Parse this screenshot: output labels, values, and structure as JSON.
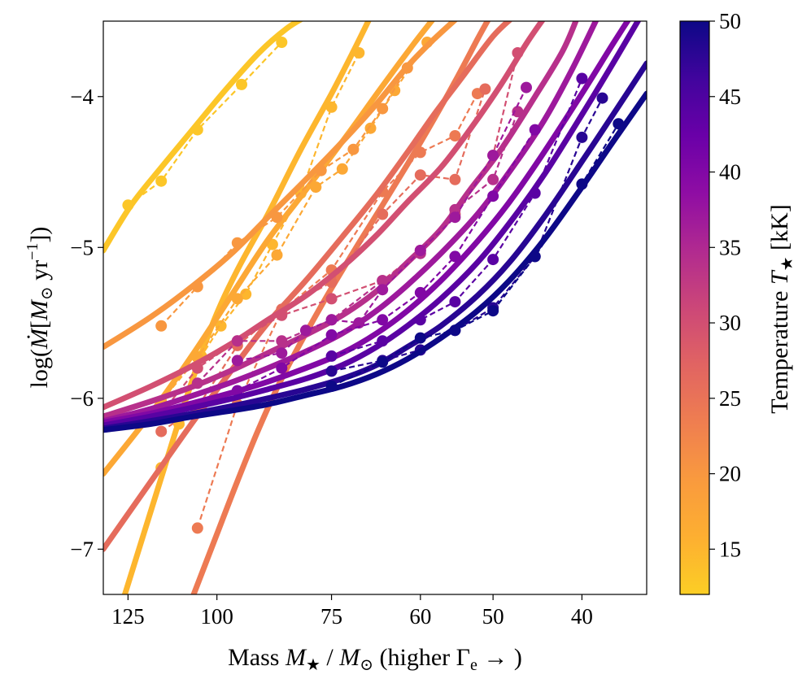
{
  "chart_data": {
    "type": "line",
    "x_scale": "log",
    "x_reversed": true,
    "xlabel_parts": {
      "text": "Mass ",
      "symbol": "M",
      "sub": "★",
      "slash": " / ",
      "symbol2": "M",
      "sub2": "⊙",
      "paren": " (higher Γ",
      "paren_sub": "e",
      "paren_end": " → )"
    },
    "xlabel": "Mass M★ / M⊙ (higher Γe → )",
    "ylabel_parts": {
      "pre": "log(",
      "symbol": "Ṁ",
      "open": "[",
      "unit": "M",
      "unit_sub": "⊙",
      "rest": " yr",
      "sup": "−1",
      "close": "])"
    },
    "ylabel": "log(Ṁ[M⊙ yr−1])",
    "xlim": [
      133,
      34
    ],
    "ylim": [
      -7.3,
      -3.5
    ],
    "xticks": [
      {
        "value": 125,
        "label": "125"
      },
      {
        "value": 100,
        "label": "100"
      },
      {
        "value": 75,
        "label": "75"
      },
      {
        "value": 60,
        "label": "60"
      },
      {
        "value": 50,
        "label": "50"
      },
      {
        "value": 40,
        "label": "40"
      }
    ],
    "yticks": [
      {
        "value": -4,
        "label": "−4"
      },
      {
        "value": -5,
        "label": "−5"
      },
      {
        "value": -6,
        "label": "−6"
      },
      {
        "value": -7,
        "label": "−7"
      }
    ],
    "colorbar": {
      "label": "Temperature T★ [kK]",
      "label_text": "Temperature ",
      "label_symbol": "T",
      "label_sub": "★",
      "label_units": " [kK]",
      "range": [
        12,
        50
      ],
      "ticks": [
        {
          "value": 15,
          "label": "15"
        },
        {
          "value": 20,
          "label": "20"
        },
        {
          "value": 25,
          "label": "25"
        },
        {
          "value": 30,
          "label": "30"
        },
        {
          "value": 35,
          "label": "35"
        },
        {
          "value": 40,
          "label": "40"
        },
        {
          "value": 45,
          "label": "45"
        },
        {
          "value": 50,
          "label": "50"
        }
      ],
      "stops": [
        {
          "t": 0.0,
          "color": "#fcce25"
        },
        {
          "t": 0.1,
          "color": "#fdaf31"
        },
        {
          "t": 0.2,
          "color": "#f99a3e"
        },
        {
          "t": 0.3,
          "color": "#ef7e50"
        },
        {
          "t": 0.4,
          "color": "#e16462"
        },
        {
          "t": 0.5,
          "color": "#cc4778"
        },
        {
          "t": 0.6,
          "color": "#b12a90"
        },
        {
          "t": 0.7,
          "color": "#8f0da4"
        },
        {
          "t": 0.8,
          "color": "#6a00a8"
        },
        {
          "t": 0.9,
          "color": "#41049d"
        },
        {
          "t": 1.0,
          "color": "#0d0887"
        }
      ]
    },
    "series": [
      {
        "name": "T=13kK",
        "temperature": 13,
        "fit": {
          "x": [
            133,
            124,
            115,
            106,
            98,
            90,
            84,
            80
          ],
          "y": [
            -5.02,
            -4.72,
            -4.47,
            -4.21,
            -3.96,
            -3.71,
            -3.55,
            -3.47
          ]
        },
        "points": {
          "x": [
            125,
            115,
            105,
            94,
            85
          ],
          "y": [
            -4.72,
            -4.56,
            -4.22,
            -3.92,
            -3.64
          ]
        }
      },
      {
        "name": "T=15kK",
        "temperature": 15,
        "fit": {
          "x": [
            126,
            116,
            108,
            101,
            95,
            88,
            81,
            75,
            71,
            68
          ],
          "y": [
            -7.3,
            -6.6,
            -6.0,
            -5.5,
            -5.15,
            -4.78,
            -4.35,
            -3.98,
            -3.7,
            -3.47
          ]
        },
        "points": {
          "x": [
            115,
            110,
            104,
            99,
            93,
            87,
            81,
            75,
            70
          ],
          "y": [
            -6.46,
            -6.17,
            -5.72,
            -5.52,
            -5.31,
            -4.98,
            -4.64,
            -4.07,
            -3.71
          ]
        }
      },
      {
        "name": "T=17kK",
        "temperature": 17,
        "fit": {
          "x": [
            133,
            118,
            106,
            96,
            88,
            80,
            72,
            66,
            61,
            58
          ],
          "y": [
            -6.5,
            -6.1,
            -5.7,
            -5.3,
            -4.95,
            -4.62,
            -4.25,
            -3.93,
            -3.65,
            -3.48
          ]
        },
        "points": {
          "x": [
            115,
            105,
            95,
            86,
            78,
            73,
            68,
            64,
            59
          ],
          "y": [
            -6.02,
            -5.73,
            -5.34,
            -5.05,
            -4.6,
            -4.48,
            -4.21,
            -3.96,
            -3.64
          ]
        }
      },
      {
        "name": "T=20kK",
        "temperature": 20,
        "fit": {
          "x": [
            133,
            118,
            106,
            96,
            88,
            80,
            73,
            67,
            62,
            58,
            54.5
          ],
          "y": [
            -5.66,
            -5.46,
            -5.25,
            -5.03,
            -4.8,
            -4.55,
            -4.3,
            -4.05,
            -3.8,
            -3.62,
            -3.47
          ]
        },
        "points": {
          "x": [
            115,
            105,
            95,
            86,
            77,
            71,
            66,
            62
          ],
          "y": [
            -5.52,
            -5.26,
            -4.97,
            -4.8,
            -4.49,
            -4.35,
            -4.08,
            -3.81
          ]
        }
      },
      {
        "name": "T=24kK",
        "temperature": 24,
        "fit": {
          "x": [
            106,
            100,
            95,
            90,
            85,
            80,
            75,
            70,
            66,
            62,
            58,
            55,
            52,
            50.5
          ],
          "y": [
            -7.3,
            -6.9,
            -6.55,
            -6.2,
            -5.87,
            -5.57,
            -5.27,
            -4.97,
            -4.72,
            -4.45,
            -4.15,
            -3.9,
            -3.62,
            -3.48
          ]
        },
        "points": {
          "x": [
            105,
            95,
            85,
            75,
            66,
            60,
            55,
            52
          ],
          "y": [
            -6.86,
            -6.04,
            -5.42,
            -5.15,
            -4.63,
            -4.37,
            -4.26,
            -3.98
          ]
        }
      },
      {
        "name": "T=26kK",
        "temperature": 26,
        "fit": {
          "x": [
            133,
            118,
            106,
            96,
            88,
            80,
            73,
            67,
            62,
            58,
            54,
            50,
            47.5
          ],
          "y": [
            -7.0,
            -6.55,
            -6.15,
            -5.8,
            -5.5,
            -5.22,
            -4.93,
            -4.65,
            -4.37,
            -4.12,
            -3.87,
            -3.6,
            -3.47
          ]
        },
        "points": {
          "x": [
            115,
            105,
            95,
            85,
            75,
            66,
            60,
            55,
            51
          ],
          "y": [
            -6.22,
            -6.06,
            -5.65,
            -5.41,
            -5.23,
            -4.78,
            -4.52,
            -4.55,
            -3.95
          ]
        }
      },
      {
        "name": "T=30kK",
        "temperature": 30,
        "fit": {
          "x": [
            133,
            118,
            106,
            96,
            88,
            80,
            73,
            67,
            62,
            57,
            53,
            49,
            46,
            44
          ],
          "y": [
            -6.06,
            -5.92,
            -5.78,
            -5.63,
            -5.48,
            -5.32,
            -5.13,
            -4.92,
            -4.7,
            -4.47,
            -4.22,
            -3.92,
            -3.65,
            -3.48
          ]
        },
        "points": {
          "x": [
            115,
            105,
            95,
            85,
            75,
            66,
            60,
            55,
            50,
            47
          ],
          "y": [
            -6.1,
            -5.8,
            -5.62,
            -5.45,
            -5.34,
            -5.22,
            -5.02,
            -4.78,
            -4.39,
            -3.71
          ]
        }
      },
      {
        "name": "T=34kK",
        "temperature": 34,
        "fit": {
          "x": [
            133,
            118,
            106,
            96,
            88,
            80,
            73,
            67,
            62,
            57,
            53,
            49,
            45,
            42,
            40.5
          ],
          "y": [
            -6.12,
            -6.02,
            -5.92,
            -5.81,
            -5.7,
            -5.58,
            -5.45,
            -5.29,
            -5.1,
            -4.88,
            -4.62,
            -4.35,
            -4.0,
            -3.7,
            -3.48
          ]
        },
        "points": {
          "x": [
            105,
            95,
            85,
            75,
            66,
            60,
            55,
            50,
            47
          ],
          "y": [
            -5.9,
            -5.62,
            -5.62,
            -5.48,
            -5.22,
            -5.04,
            -4.75,
            -4.55,
            -4.1
          ]
        }
      },
      {
        "name": "T=37kK",
        "temperature": 37,
        "fit": {
          "x": [
            133,
            118,
            106,
            96,
            88,
            80,
            73,
            67,
            62,
            57,
            52,
            48,
            44,
            41,
            38.5
          ],
          "y": [
            -6.15,
            -6.07,
            -5.98,
            -5.89,
            -5.8,
            -5.69,
            -5.57,
            -5.42,
            -5.25,
            -5.04,
            -4.78,
            -4.5,
            -4.16,
            -3.82,
            -3.48
          ]
        },
        "points": {
          "x": [
            95,
            85,
            80,
            75,
            70,
            66,
            60,
            55,
            50,
            46
          ],
          "y": [
            -5.75,
            -5.7,
            -5.55,
            -5.48,
            -5.5,
            -5.28,
            -5.02,
            -4.8,
            -4.39,
            -3.94
          ]
        }
      },
      {
        "name": "T=40kK",
        "temperature": 40,
        "fit": {
          "x": [
            133,
            118,
            106,
            96,
            88,
            80,
            73,
            67,
            62,
            57,
            52,
            48,
            44,
            40,
            37,
            35.5
          ],
          "y": [
            -6.16,
            -6.1,
            -6.03,
            -5.96,
            -5.89,
            -5.8,
            -5.7,
            -5.57,
            -5.42,
            -5.22,
            -4.96,
            -4.7,
            -4.37,
            -3.98,
            -3.65,
            -3.48
          ]
        },
        "points": {
          "x": [
            95,
            85,
            75,
            66,
            60,
            55,
            50,
            45
          ],
          "y": [
            -5.95,
            -5.8,
            -5.58,
            -5.48,
            -5.3,
            -5.06,
            -4.66,
            -4.22
          ]
        }
      },
      {
        "name": "T=44kK",
        "temperature": 44,
        "fit": {
          "x": [
            133,
            118,
            106,
            96,
            88,
            80,
            73,
            67,
            62,
            57,
            52,
            48,
            44,
            40,
            37,
            34
          ],
          "y": [
            -6.18,
            -6.12,
            -6.06,
            -6.0,
            -5.94,
            -5.87,
            -5.78,
            -5.66,
            -5.52,
            -5.34,
            -5.1,
            -4.84,
            -4.52,
            -4.12,
            -3.78,
            -3.4
          ]
        },
        "points": {
          "x": [
            75,
            66,
            60,
            55,
            50,
            45,
            40
          ],
          "y": [
            -5.72,
            -5.62,
            -5.48,
            -5.36,
            -5.08,
            -4.64,
            -3.88
          ]
        }
      },
      {
        "name": "T=48kK",
        "temperature": 48,
        "fit": {
          "x": [
            133,
            118,
            106,
            96,
            88,
            80,
            73,
            67,
            62,
            57,
            52,
            48,
            44,
            40,
            37,
            34
          ],
          "y": [
            -6.2,
            -6.15,
            -6.1,
            -6.05,
            -6.0,
            -5.94,
            -5.87,
            -5.78,
            -5.66,
            -5.52,
            -5.32,
            -5.1,
            -4.8,
            -4.43,
            -4.12,
            -3.78
          ]
        },
        "points": {
          "x": [
            75,
            66,
            60,
            55,
            50,
            45,
            40,
            38
          ],
          "y": [
            -5.82,
            -5.75,
            -5.68,
            -5.55,
            -5.4,
            -5.06,
            -4.27,
            -4.01
          ]
        }
      },
      {
        "name": "T=50kK",
        "temperature": 50,
        "fit": {
          "x": [
            133,
            118,
            106,
            96,
            88,
            80,
            73,
            67,
            62,
            57,
            52,
            48,
            44,
            40,
            37,
            34
          ],
          "y": [
            -6.21,
            -6.17,
            -6.12,
            -6.08,
            -6.04,
            -5.98,
            -5.92,
            -5.84,
            -5.74,
            -5.6,
            -5.42,
            -5.22,
            -4.95,
            -4.6,
            -4.3,
            -3.98
          ]
        },
        "points": {
          "x": [
            75,
            66,
            60,
            55,
            50,
            45,
            40,
            36.5
          ],
          "y": [
            -5.92,
            -5.76,
            -5.6,
            -5.55,
            -5.42,
            -5.06,
            -4.58,
            -4.18
          ]
        }
      }
    ]
  }
}
